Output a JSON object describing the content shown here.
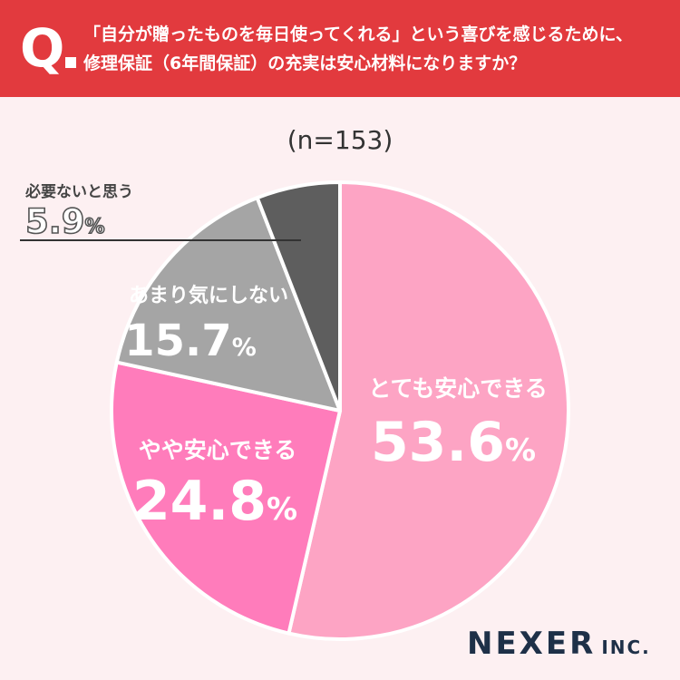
{
  "header": {
    "q_label": "Q",
    "question_line1": "「自分が贈ったものを毎日使ってくれる」という喜びを感じるために、",
    "question_line2": "修理保証（6年間保証）の充実は安心材料になりますか？"
  },
  "sample_size": "(n=153)",
  "logo": {
    "main": "NEXER",
    "suffix": "INC."
  },
  "chart_data": {
    "type": "pie",
    "title": "",
    "slices": [
      {
        "label": "とても安心できる",
        "value": 53.6,
        "value_text": "53.6",
        "color": "#fda4c4"
      },
      {
        "label": "やや安心できる",
        "value": 24.8,
        "value_text": "24.8",
        "color": "#ff7cbb"
      },
      {
        "label": "あまり気にしない",
        "value": 15.7,
        "value_text": "15.7",
        "color": "#a5a5a5"
      },
      {
        "label": "必要ないと思う",
        "value": 5.9,
        "value_text": "5.9",
        "color": "#5e5e5e"
      }
    ],
    "unit": "%",
    "start": "12 o'clock, clockwise"
  }
}
